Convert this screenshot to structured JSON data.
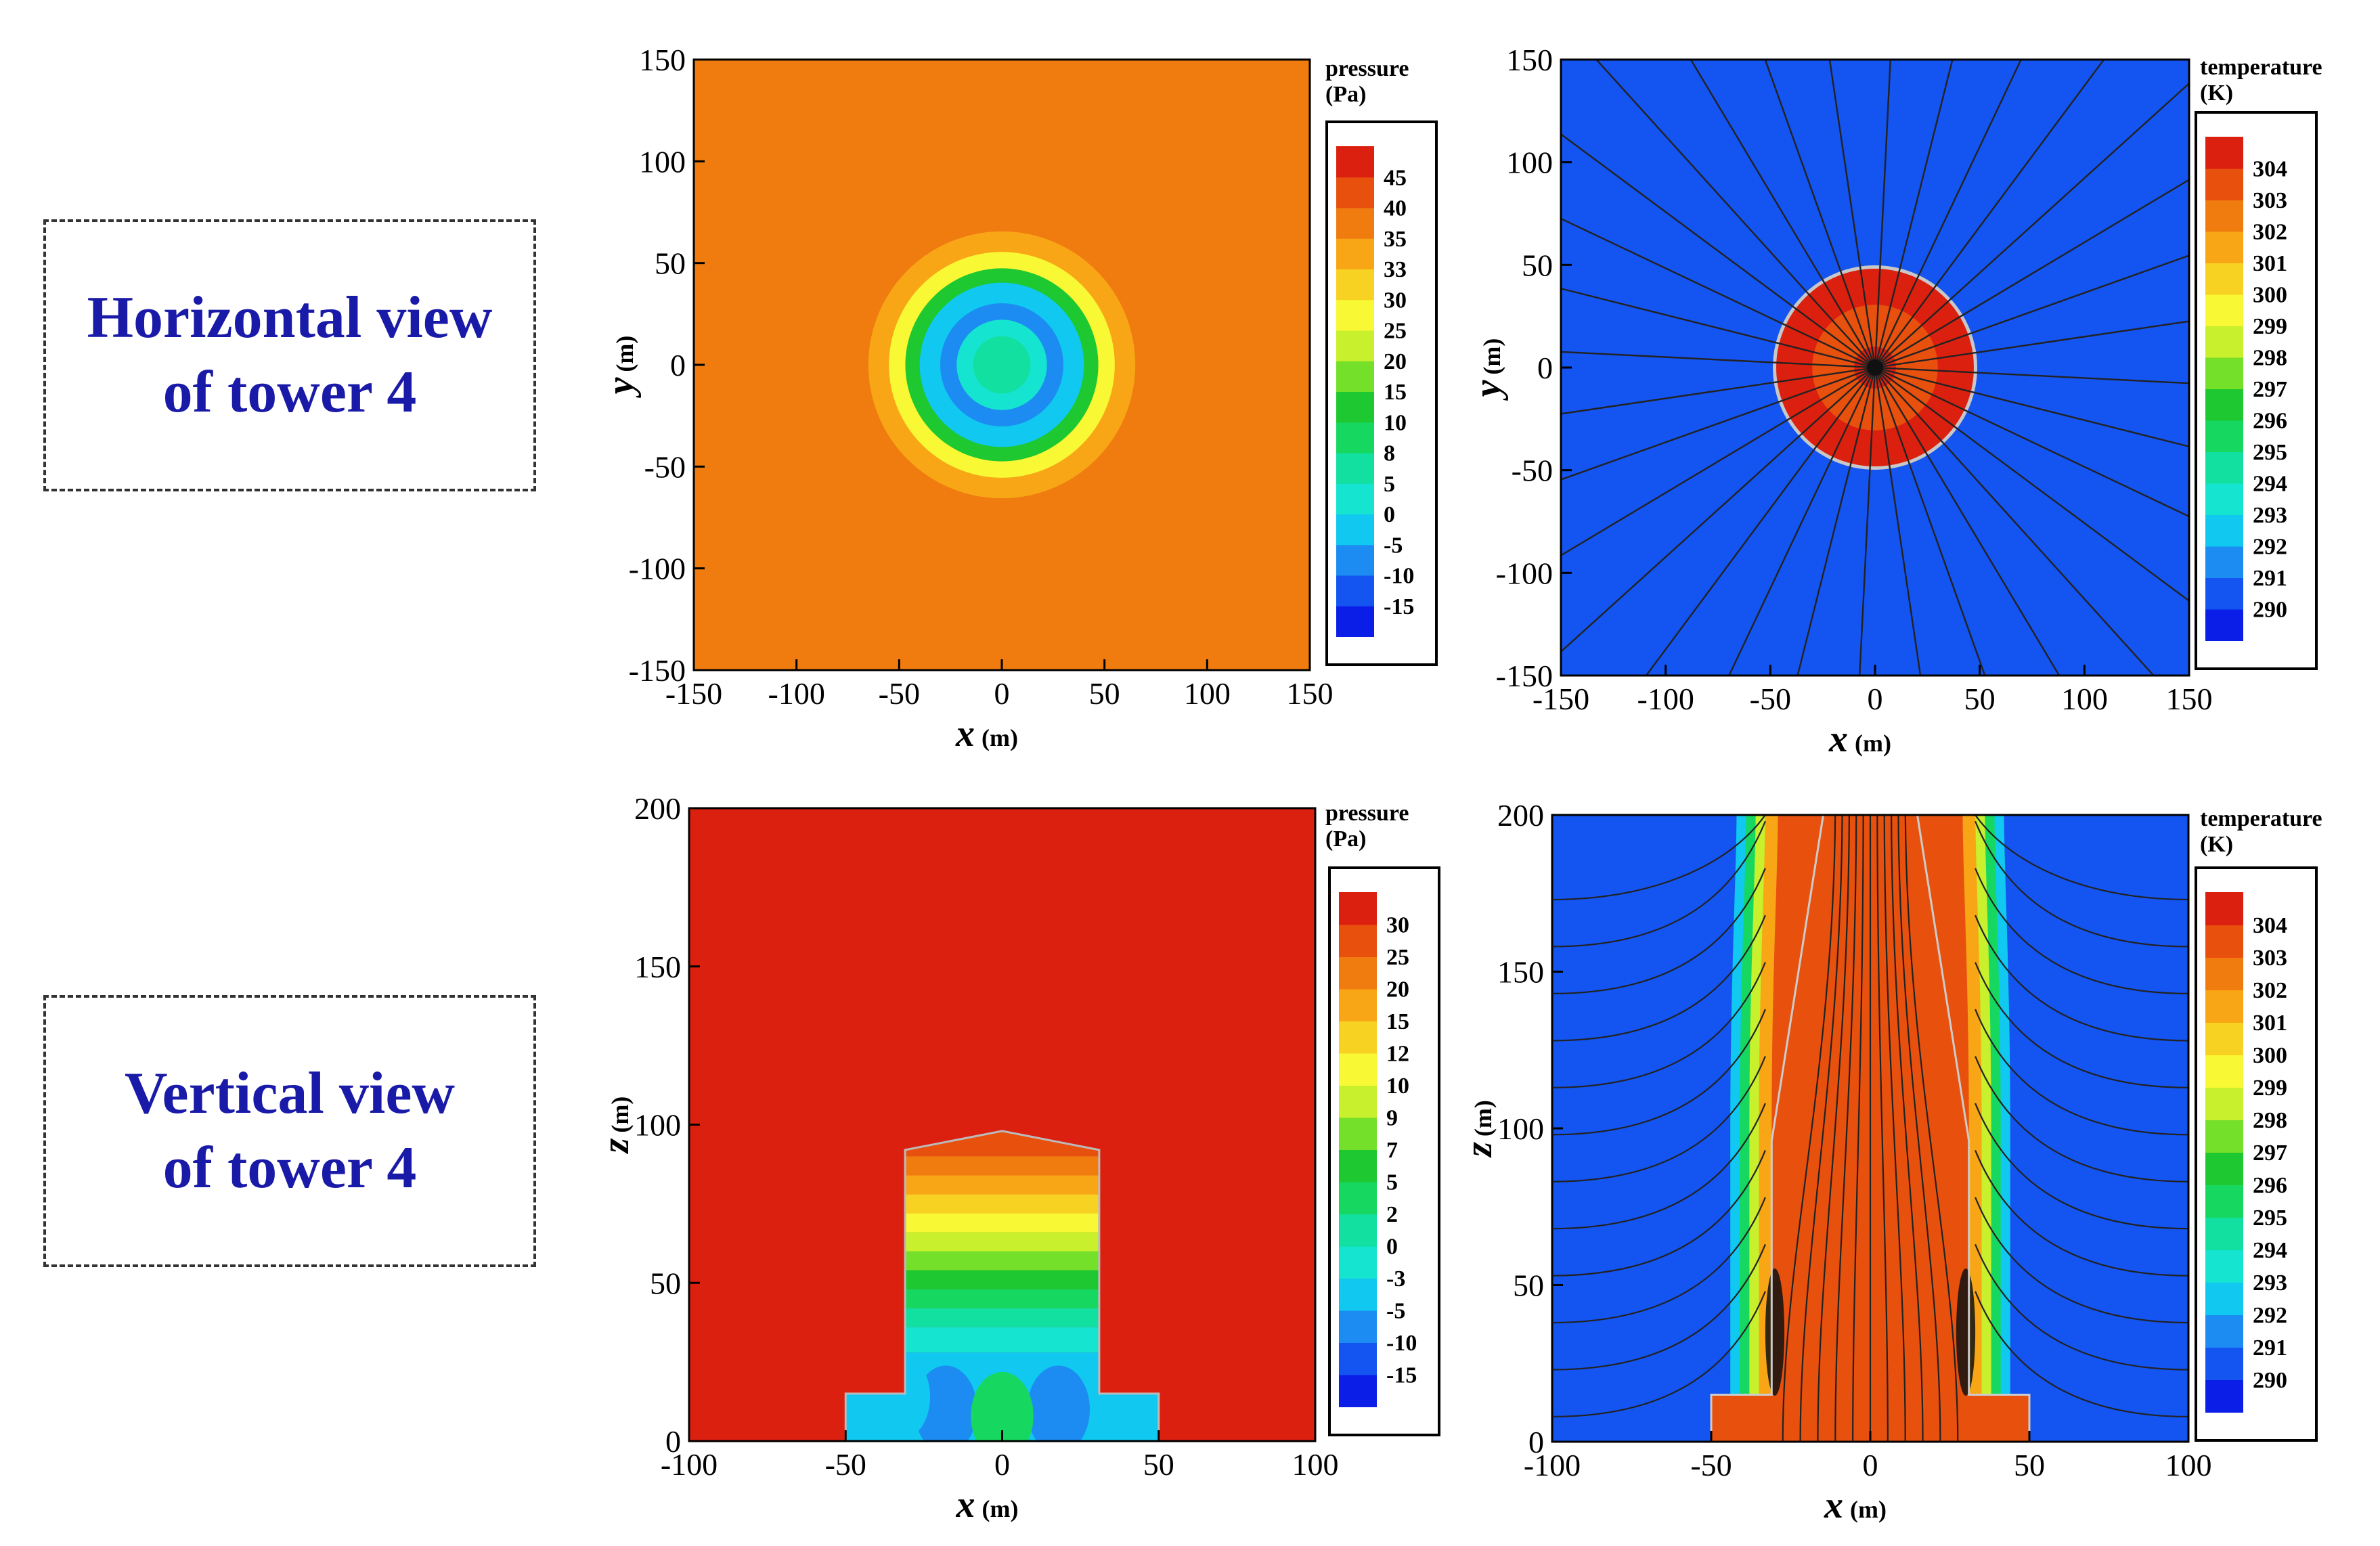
{
  "row_labels": {
    "horizontal": {
      "line1": "Horizontal view",
      "line2": "of tower 4"
    },
    "vertical": {
      "line1": "Vertical view",
      "line2": "of tower 4"
    }
  },
  "colors": {
    "pressure_scale": [
      "#0a1ee8",
      "#1454f0",
      "#1c8cf2",
      "#10c8f0",
      "#14e4d0",
      "#12e0a0",
      "#16d860",
      "#1ec830",
      "#74e02a",
      "#c8f02c",
      "#f8f834",
      "#f8d222",
      "#f8a616",
      "#f07c10",
      "#e8500e",
      "#dc2010"
    ],
    "temperature_scale": [
      "#0a1ee8",
      "#1454f0",
      "#1c8cf2",
      "#10c8f0",
      "#14e4d0",
      "#12e0a0",
      "#16d860",
      "#1ec830",
      "#74e02a",
      "#c8f02c",
      "#f8f834",
      "#f8d222",
      "#f8a616",
      "#f07c10",
      "#e8500e",
      "#dc2010"
    ],
    "streamline": "#222222"
  },
  "chart_data": [
    {
      "type": "heatmap",
      "name": "horizontal-pressure",
      "xlabel": "x",
      "xunit": "(m)",
      "ylabel": "y",
      "yunit": "(m)",
      "xlim": [
        -150,
        150
      ],
      "ylim": [
        -150,
        150
      ],
      "xticks": [
        -150,
        -100,
        -50,
        0,
        50,
        100,
        150
      ],
      "yticks": [
        -150,
        -100,
        -50,
        0,
        50,
        100,
        150
      ],
      "legend": {
        "title_line1": "pressure",
        "title_line2": "(Pa)",
        "levels": [
          "-15",
          "-10",
          "-5",
          "0",
          "5",
          "8",
          "10",
          "15",
          "20",
          "25",
          "30",
          "33",
          "35",
          "40",
          "45"
        ]
      },
      "background_value": 35,
      "rings": [
        {
          "radius": 65,
          "value": 33
        },
        {
          "radius": 55,
          "value": 25
        },
        {
          "radius": 47,
          "value": 10
        },
        {
          "radius": 40,
          "value": -5
        },
        {
          "radius": 30,
          "value": -10
        },
        {
          "radius": 22,
          "value": 0
        },
        {
          "radius": 14,
          "value": 5
        }
      ]
    },
    {
      "type": "heatmap",
      "name": "horizontal-temperature",
      "xlabel": "x",
      "xunit": "(m)",
      "ylabel": "y",
      "yunit": "(m)",
      "xlim": [
        -150,
        150
      ],
      "ylim": [
        -150,
        150
      ],
      "xticks": [
        -150,
        -100,
        -50,
        0,
        50,
        100,
        150
      ],
      "yticks": [
        -150,
        -100,
        -50,
        0,
        50,
        100,
        150
      ],
      "legend": {
        "title_line1": "temperature",
        "title_line2": "(K)",
        "levels": [
          "290",
          "291",
          "292",
          "293",
          "294",
          "295",
          "296",
          "297",
          "298",
          "299",
          "300",
          "301",
          "302",
          "303",
          "304"
        ]
      },
      "background_value": 290,
      "rings": [
        {
          "radius": 48,
          "value": 304
        },
        {
          "radius": 30,
          "value": 303
        },
        {
          "radius": 10,
          "value": 304
        }
      ]
    },
    {
      "type": "heatmap",
      "name": "vertical-pressure",
      "xlabel": "x",
      "xunit": "(m)",
      "ylabel": "z",
      "yunit": "(m)",
      "xlim": [
        -100,
        100
      ],
      "ylim": [
        0,
        200
      ],
      "xticks": [
        -100,
        -50,
        0,
        50,
        100
      ],
      "yticks": [
        0,
        50,
        100,
        150,
        200
      ],
      "legend": {
        "title_line1": "pressure",
        "title_line2": "(Pa)",
        "levels": [
          "-15",
          "-10",
          "-5",
          "-3",
          "0",
          "2",
          "5",
          "7",
          "9",
          "10",
          "12",
          "15",
          "20",
          "25",
          "30"
        ]
      },
      "background_value": 30,
      "tower_profile": {
        "base_half_width": 50,
        "base_height": 15,
        "half_width": 31,
        "top_height": 92,
        "peak_height": 98
      },
      "bands": [
        {
          "from": 90,
          "to": 98,
          "value": 25
        },
        {
          "from": 84,
          "to": 90,
          "value": 20
        },
        {
          "from": 78,
          "to": 84,
          "value": 15
        },
        {
          "from": 72,
          "to": 78,
          "value": 12
        },
        {
          "from": 66,
          "to": 72,
          "value": 10
        },
        {
          "from": 60,
          "to": 66,
          "value": 9
        },
        {
          "from": 54,
          "to": 60,
          "value": 7
        },
        {
          "from": 48,
          "to": 54,
          "value": 5
        },
        {
          "from": 42,
          "to": 48,
          "value": 2
        },
        {
          "from": 36,
          "to": 42,
          "value": 0
        },
        {
          "from": 28,
          "to": 36,
          "value": -3
        },
        {
          "from": 0,
          "to": 28,
          "value": -5
        }
      ]
    },
    {
      "type": "heatmap",
      "name": "vertical-temperature",
      "xlabel": "x",
      "xunit": "(m)",
      "ylabel": "z",
      "yunit": "(m)",
      "xlim": [
        -100,
        100
      ],
      "ylim": [
        0,
        200
      ],
      "xticks": [
        -100,
        -50,
        0,
        50,
        100
      ],
      "yticks": [
        0,
        50,
        100,
        150,
        200
      ],
      "legend": {
        "title_line1": "temperature",
        "title_line2": "(K)",
        "levels": [
          "290",
          "291",
          "292",
          "293",
          "294",
          "295",
          "296",
          "297",
          "298",
          "299",
          "300",
          "301",
          "302",
          "303",
          "304"
        ]
      },
      "background_value": 290,
      "tower_profile": {
        "base_half_width": 50,
        "base_height": 15,
        "half_width": 31,
        "top_height": 96
      },
      "plume": [
        {
          "offset": 0,
          "value": 303
        },
        {
          "offset": 4,
          "value": 301
        },
        {
          "offset": 7,
          "value": 298
        },
        {
          "offset": 10,
          "value": 295
        },
        {
          "offset": 13,
          "value": 292
        }
      ]
    }
  ]
}
